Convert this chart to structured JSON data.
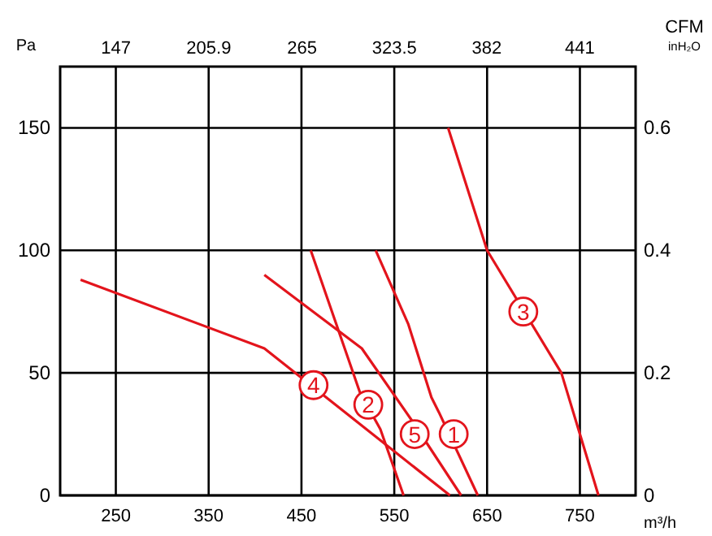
{
  "chart_data": {
    "type": "line",
    "xlabel": "m³/h",
    "ylabel": "Pa",
    "x2label": "CFM",
    "y2label": "inH₂O",
    "xlim": [
      190,
      810
    ],
    "xticks": [
      250,
      350,
      450,
      550,
      650,
      750
    ],
    "ylim": [
      0,
      175
    ],
    "yticks": [
      0,
      50,
      100,
      150
    ],
    "x2lim": [
      111.72,
      476.28
    ],
    "x2ticks": [
      147,
      205.9,
      265,
      323.5,
      382,
      441
    ],
    "y2lim": [
      0,
      0.7
    ],
    "y2ticks": [
      0,
      0.2,
      0.4,
      0.6
    ],
    "grid": true,
    "line_style": "solid",
    "marker": "none",
    "series": [
      {
        "color": "#e3141c",
        "x": [
          530,
          565,
          590,
          598,
          640
        ],
        "values": [
          100,
          70,
          40,
          34,
          0
        ]
      },
      {
        "color": "#e3141c",
        "x": [
          460,
          513,
          535,
          560
        ],
        "values": [
          100,
          42,
          27,
          0
        ]
      },
      {
        "color": "#e3141c",
        "x": [
          608,
          650,
          730,
          770
        ],
        "values": [
          150,
          100,
          50,
          0
        ]
      },
      {
        "color": "#e3141c",
        "x": [
          212,
          410,
          610
        ],
        "values": [
          88,
          60,
          0
        ]
      },
      {
        "color": "#e3141c",
        "x": [
          410,
          515,
          570,
          622
        ],
        "values": [
          90,
          60,
          30,
          0
        ]
      }
    ],
    "annotations": [
      {
        "text": "1",
        "x": 614,
        "y": 25
      },
      {
        "text": "2",
        "x": 522,
        "y": 37
      },
      {
        "text": "3",
        "x": 689,
        "y": 75
      },
      {
        "text": "4",
        "x": 463,
        "y": 45
      },
      {
        "text": "5",
        "x": 572,
        "y": 25
      }
    ]
  }
}
